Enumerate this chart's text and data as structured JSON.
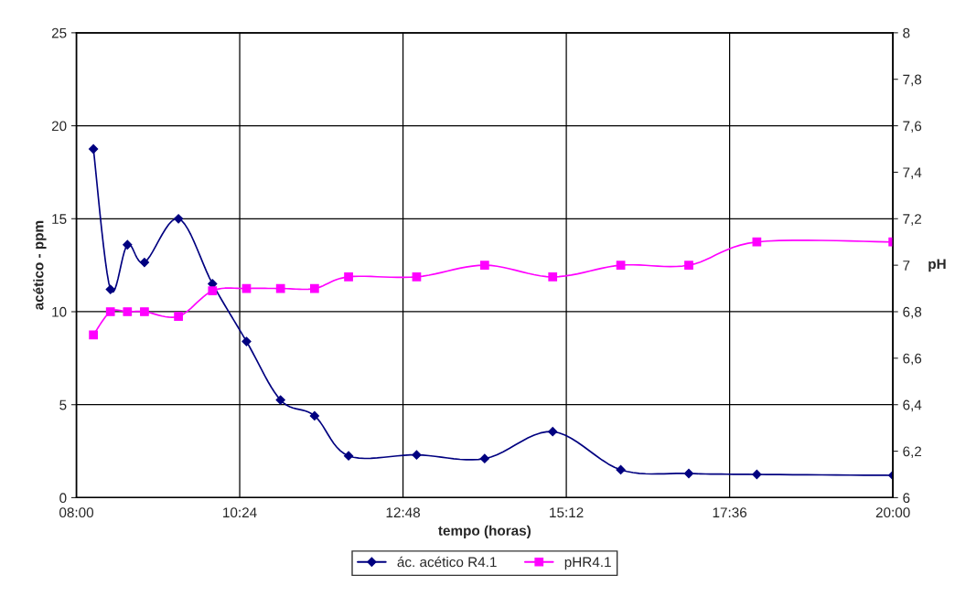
{
  "chart_data": {
    "type": "line",
    "xlabel": "tempo (horas)",
    "ylabel": "acético - ppm",
    "y2label": "pH",
    "x": [
      8.25,
      8.5,
      8.75,
      9.0,
      9.5,
      10.0,
      10.5,
      11.0,
      11.5,
      12.0,
      13.0,
      14.0,
      15.0,
      16.0,
      17.0,
      18.0,
      20.0
    ],
    "series": [
      {
        "name": "ác. acético R4.1",
        "color": "#000080",
        "marker": "diamond",
        "values": [
          18.75,
          11.2,
          13.6,
          12.65,
          15.0,
          11.5,
          8.4,
          5.25,
          4.4,
          2.25,
          2.3,
          2.1,
          3.55,
          1.5,
          1.3,
          1.25,
          1.2
        ]
      },
      {
        "name": "pHR4.1",
        "color": "#ff00ff",
        "marker": "square",
        "axis": "y2",
        "values": [
          6.7,
          6.8,
          6.8,
          6.8,
          6.78,
          6.89,
          6.9,
          6.9,
          6.9,
          6.95,
          6.95,
          7.0,
          6.95,
          7.0,
          7.0,
          7.1,
          7.1
        ]
      }
    ],
    "xlim": [
      8,
      20
    ],
    "xticks": [
      {
        "value": 8,
        "label": "08:00"
      },
      {
        "value": 10.4,
        "label": "10:24"
      },
      {
        "value": 12.8,
        "label": "12:48"
      },
      {
        "value": 15.2,
        "label": "15:12"
      },
      {
        "value": 17.6,
        "label": "17:36"
      },
      {
        "value": 20,
        "label": "20:00"
      }
    ],
    "ylim": [
      0,
      25
    ],
    "yticks": [
      0,
      5,
      10,
      15,
      20,
      25
    ],
    "y2lim": [
      6,
      8
    ],
    "y2ticks": [
      6,
      {
        "value": 6.2,
        "label": "6,2"
      },
      {
        "value": 6.4,
        "label": "6,4"
      },
      {
        "value": 6.6,
        "label": "6,6"
      },
      {
        "value": 6.8,
        "label": "6,8"
      },
      7,
      {
        "value": 7.2,
        "label": "7,2"
      },
      {
        "value": 7.4,
        "label": "7,4"
      },
      {
        "value": 7.6,
        "label": "7,6"
      },
      {
        "value": 7.8,
        "label": "7,8"
      },
      8
    ],
    "grid": true,
    "legend": "bottom",
    "line_style": "solid"
  }
}
